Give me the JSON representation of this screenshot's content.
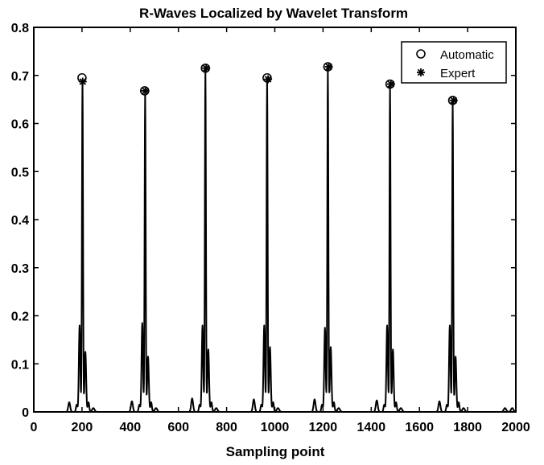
{
  "chart_data": {
    "type": "line",
    "title": "R-Waves Localized by Wavelet Transform",
    "xlabel": "Sampling point",
    "ylabel": "",
    "xlim": [
      0,
      2000
    ],
    "ylim": [
      0,
      0.8
    ],
    "x_ticks": [
      0,
      200,
      400,
      600,
      800,
      1000,
      1200,
      1400,
      1600,
      1800,
      2000
    ],
    "y_ticks": [
      0,
      0.1,
      0.2,
      0.3,
      0.4,
      0.5,
      0.6,
      0.7,
      0.8
    ],
    "x_tick_labels": [
      "0",
      "200",
      "400",
      "600",
      "800",
      "1000",
      "1200",
      "1400",
      "1600",
      "1800",
      "2000"
    ],
    "y_tick_labels": [
      "0",
      "0.1",
      "0.2",
      "0.3",
      "0.4",
      "0.5",
      "0.6",
      "0.7",
      "0.8"
    ],
    "grid": false,
    "legend_position": "top-right",
    "series": [
      {
        "name": "",
        "style": "line",
        "color": "#000000",
        "beats": [
          {
            "r": 202,
            "peak": 0.69,
            "q": 0.18,
            "s": 0.125,
            "p": 0.02,
            "t": 0.008
          },
          {
            "r": 462,
            "peak": 0.665,
            "q": 0.185,
            "s": 0.115,
            "p": 0.022,
            "t": 0.008
          },
          {
            "r": 712,
            "peak": 0.715,
            "q": 0.18,
            "s": 0.13,
            "p": 0.028,
            "t": 0.008
          },
          {
            "r": 968,
            "peak": 0.695,
            "q": 0.18,
            "s": 0.135,
            "p": 0.026,
            "t": 0.008
          },
          {
            "r": 1220,
            "peak": 0.715,
            "q": 0.175,
            "s": 0.135,
            "p": 0.026,
            "t": 0.008
          },
          {
            "r": 1478,
            "peak": 0.68,
            "q": 0.18,
            "s": 0.13,
            "p": 0.024,
            "t": 0.008
          },
          {
            "r": 1738,
            "peak": 0.645,
            "q": 0.18,
            "s": 0.115,
            "p": 0.022,
            "t": 0.008
          }
        ],
        "tail_bumps": [
          {
            "x": 1955,
            "y": 0.008
          },
          {
            "x": 1985,
            "y": 0.008
          }
        ]
      },
      {
        "name": "Automatic",
        "marker": "circle",
        "x": [
          200,
          460,
          712,
          968,
          1220,
          1478,
          1738
        ],
        "y": [
          0.695,
          0.668,
          0.715,
          0.695,
          0.718,
          0.682,
          0.648
        ]
      },
      {
        "name": "Expert",
        "marker": "asterisk",
        "x": [
          203,
          463,
          715,
          972,
          1224,
          1482,
          1742
        ],
        "y": [
          0.687,
          0.668,
          0.715,
          0.692,
          0.718,
          0.682,
          0.648
        ]
      }
    ]
  }
}
